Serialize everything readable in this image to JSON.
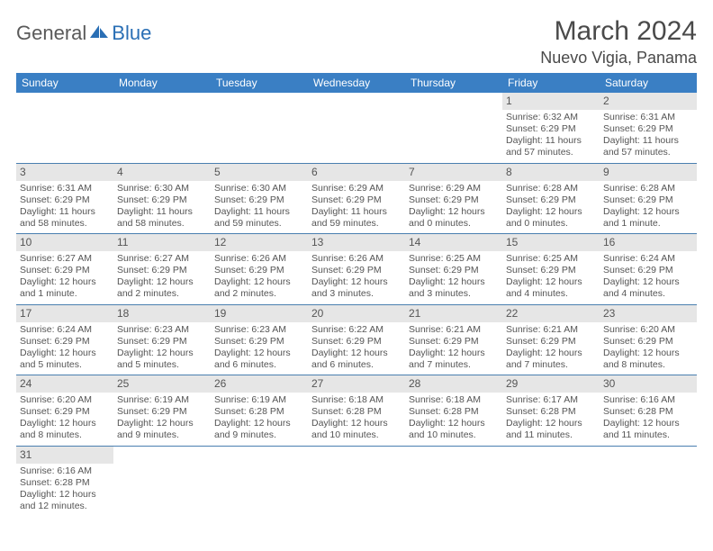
{
  "logo": {
    "general": "General",
    "blue": "Blue"
  },
  "title": "March 2024",
  "location": "Nuevo Vigia, Panama",
  "colors": {
    "header_bg": "#3a7fc4",
    "header_text": "#ffffff",
    "daynum_bg": "#e6e6e6",
    "row_border": "#4a7fb0",
    "body_text": "#555555",
    "logo_blue": "#2a6fb5"
  },
  "dayNames": [
    "Sunday",
    "Monday",
    "Tuesday",
    "Wednesday",
    "Thursday",
    "Friday",
    "Saturday"
  ],
  "weeks": [
    [
      null,
      null,
      null,
      null,
      null,
      {
        "n": "1",
        "sr": "Sunrise: 6:32 AM",
        "ss": "Sunset: 6:29 PM",
        "d1": "Daylight: 11 hours",
        "d2": "and 57 minutes."
      },
      {
        "n": "2",
        "sr": "Sunrise: 6:31 AM",
        "ss": "Sunset: 6:29 PM",
        "d1": "Daylight: 11 hours",
        "d2": "and 57 minutes."
      }
    ],
    [
      {
        "n": "3",
        "sr": "Sunrise: 6:31 AM",
        "ss": "Sunset: 6:29 PM",
        "d1": "Daylight: 11 hours",
        "d2": "and 58 minutes."
      },
      {
        "n": "4",
        "sr": "Sunrise: 6:30 AM",
        "ss": "Sunset: 6:29 PM",
        "d1": "Daylight: 11 hours",
        "d2": "and 58 minutes."
      },
      {
        "n": "5",
        "sr": "Sunrise: 6:30 AM",
        "ss": "Sunset: 6:29 PM",
        "d1": "Daylight: 11 hours",
        "d2": "and 59 minutes."
      },
      {
        "n": "6",
        "sr": "Sunrise: 6:29 AM",
        "ss": "Sunset: 6:29 PM",
        "d1": "Daylight: 11 hours",
        "d2": "and 59 minutes."
      },
      {
        "n": "7",
        "sr": "Sunrise: 6:29 AM",
        "ss": "Sunset: 6:29 PM",
        "d1": "Daylight: 12 hours",
        "d2": "and 0 minutes."
      },
      {
        "n": "8",
        "sr": "Sunrise: 6:28 AM",
        "ss": "Sunset: 6:29 PM",
        "d1": "Daylight: 12 hours",
        "d2": "and 0 minutes."
      },
      {
        "n": "9",
        "sr": "Sunrise: 6:28 AM",
        "ss": "Sunset: 6:29 PM",
        "d1": "Daylight: 12 hours",
        "d2": "and 1 minute."
      }
    ],
    [
      {
        "n": "10",
        "sr": "Sunrise: 6:27 AM",
        "ss": "Sunset: 6:29 PM",
        "d1": "Daylight: 12 hours",
        "d2": "and 1 minute."
      },
      {
        "n": "11",
        "sr": "Sunrise: 6:27 AM",
        "ss": "Sunset: 6:29 PM",
        "d1": "Daylight: 12 hours",
        "d2": "and 2 minutes."
      },
      {
        "n": "12",
        "sr": "Sunrise: 6:26 AM",
        "ss": "Sunset: 6:29 PM",
        "d1": "Daylight: 12 hours",
        "d2": "and 2 minutes."
      },
      {
        "n": "13",
        "sr": "Sunrise: 6:26 AM",
        "ss": "Sunset: 6:29 PM",
        "d1": "Daylight: 12 hours",
        "d2": "and 3 minutes."
      },
      {
        "n": "14",
        "sr": "Sunrise: 6:25 AM",
        "ss": "Sunset: 6:29 PM",
        "d1": "Daylight: 12 hours",
        "d2": "and 3 minutes."
      },
      {
        "n": "15",
        "sr": "Sunrise: 6:25 AM",
        "ss": "Sunset: 6:29 PM",
        "d1": "Daylight: 12 hours",
        "d2": "and 4 minutes."
      },
      {
        "n": "16",
        "sr": "Sunrise: 6:24 AM",
        "ss": "Sunset: 6:29 PM",
        "d1": "Daylight: 12 hours",
        "d2": "and 4 minutes."
      }
    ],
    [
      {
        "n": "17",
        "sr": "Sunrise: 6:24 AM",
        "ss": "Sunset: 6:29 PM",
        "d1": "Daylight: 12 hours",
        "d2": "and 5 minutes."
      },
      {
        "n": "18",
        "sr": "Sunrise: 6:23 AM",
        "ss": "Sunset: 6:29 PM",
        "d1": "Daylight: 12 hours",
        "d2": "and 5 minutes."
      },
      {
        "n": "19",
        "sr": "Sunrise: 6:23 AM",
        "ss": "Sunset: 6:29 PM",
        "d1": "Daylight: 12 hours",
        "d2": "and 6 minutes."
      },
      {
        "n": "20",
        "sr": "Sunrise: 6:22 AM",
        "ss": "Sunset: 6:29 PM",
        "d1": "Daylight: 12 hours",
        "d2": "and 6 minutes."
      },
      {
        "n": "21",
        "sr": "Sunrise: 6:21 AM",
        "ss": "Sunset: 6:29 PM",
        "d1": "Daylight: 12 hours",
        "d2": "and 7 minutes."
      },
      {
        "n": "22",
        "sr": "Sunrise: 6:21 AM",
        "ss": "Sunset: 6:29 PM",
        "d1": "Daylight: 12 hours",
        "d2": "and 7 minutes."
      },
      {
        "n": "23",
        "sr": "Sunrise: 6:20 AM",
        "ss": "Sunset: 6:29 PM",
        "d1": "Daylight: 12 hours",
        "d2": "and 8 minutes."
      }
    ],
    [
      {
        "n": "24",
        "sr": "Sunrise: 6:20 AM",
        "ss": "Sunset: 6:29 PM",
        "d1": "Daylight: 12 hours",
        "d2": "and 8 minutes."
      },
      {
        "n": "25",
        "sr": "Sunrise: 6:19 AM",
        "ss": "Sunset: 6:29 PM",
        "d1": "Daylight: 12 hours",
        "d2": "and 9 minutes."
      },
      {
        "n": "26",
        "sr": "Sunrise: 6:19 AM",
        "ss": "Sunset: 6:28 PM",
        "d1": "Daylight: 12 hours",
        "d2": "and 9 minutes."
      },
      {
        "n": "27",
        "sr": "Sunrise: 6:18 AM",
        "ss": "Sunset: 6:28 PM",
        "d1": "Daylight: 12 hours",
        "d2": "and 10 minutes."
      },
      {
        "n": "28",
        "sr": "Sunrise: 6:18 AM",
        "ss": "Sunset: 6:28 PM",
        "d1": "Daylight: 12 hours",
        "d2": "and 10 minutes."
      },
      {
        "n": "29",
        "sr": "Sunrise: 6:17 AM",
        "ss": "Sunset: 6:28 PM",
        "d1": "Daylight: 12 hours",
        "d2": "and 11 minutes."
      },
      {
        "n": "30",
        "sr": "Sunrise: 6:16 AM",
        "ss": "Sunset: 6:28 PM",
        "d1": "Daylight: 12 hours",
        "d2": "and 11 minutes."
      }
    ],
    [
      {
        "n": "31",
        "sr": "Sunrise: 6:16 AM",
        "ss": "Sunset: 6:28 PM",
        "d1": "Daylight: 12 hours",
        "d2": "and 12 minutes."
      },
      null,
      null,
      null,
      null,
      null,
      null
    ]
  ]
}
